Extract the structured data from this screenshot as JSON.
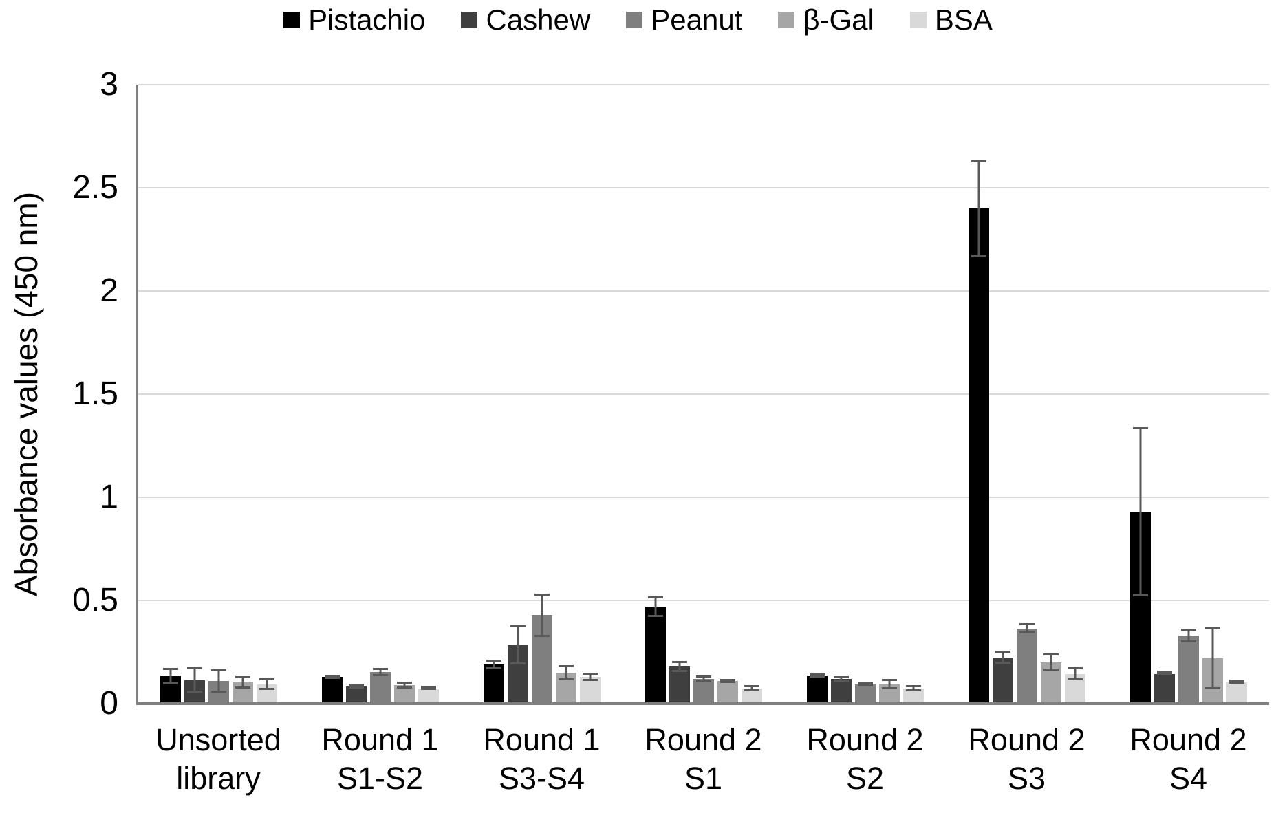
{
  "chart_data": {
    "type": "bar",
    "title": "",
    "ylabel": "Absorbance values (450 nm)",
    "xlabel": "",
    "ylim": [
      0,
      3
    ],
    "yticks": [
      0,
      0.5,
      1,
      1.5,
      2,
      2.5,
      3
    ],
    "grid": true,
    "legend_position": "top",
    "gridline_color": "#d9d9d9",
    "axis_color": "#7f7f7f",
    "error_bar_color": "#595959",
    "categories": [
      {
        "label": "Unsorted library",
        "lines": [
          "Unsorted",
          "library"
        ]
      },
      {
        "label": "Round 1 S1-S2",
        "lines": [
          "Round 1",
          "S1-S2"
        ]
      },
      {
        "label": "Round 1 S3-S4",
        "lines": [
          "Round 1",
          "S3-S4"
        ]
      },
      {
        "label": "Round 2 S1",
        "lines": [
          "Round 2",
          "S1"
        ]
      },
      {
        "label": "Round 2 S2",
        "lines": [
          "Round 2",
          "S2"
        ]
      },
      {
        "label": "Round 2 S3",
        "lines": [
          "Round 2",
          "S3"
        ]
      },
      {
        "label": "Round 2 S4",
        "lines": [
          "Round 2",
          "S4"
        ]
      }
    ],
    "series": [
      {
        "name": "Pistachio",
        "color": "#000000",
        "values": [
          0.135,
          0.13,
          0.19,
          0.47,
          0.135,
          2.4,
          0.93
        ],
        "errors": [
          0.04,
          0.01,
          0.022,
          0.05,
          0.008,
          0.235,
          0.41
        ]
      },
      {
        "name": "Cashew",
        "color": "#3f3f3f",
        "values": [
          0.115,
          0.085,
          0.285,
          0.18,
          0.12,
          0.225,
          0.145
        ],
        "errors": [
          0.063,
          0.01,
          0.095,
          0.026,
          0.012,
          0.032,
          0.006
        ]
      },
      {
        "name": "Peanut",
        "color": "#7f7f7f",
        "values": [
          0.11,
          0.155,
          0.43,
          0.12,
          0.095,
          0.365,
          0.33
        ],
        "errors": [
          0.058,
          0.02,
          0.105,
          0.018,
          0.01,
          0.025,
          0.033
        ]
      },
      {
        "name": "β-Gal",
        "color": "#a6a6a6",
        "values": [
          0.105,
          0.09,
          0.15,
          0.11,
          0.095,
          0.2,
          0.22
        ],
        "errors": [
          0.03,
          0.016,
          0.036,
          0.01,
          0.024,
          0.044,
          0.15
        ]
      },
      {
        "name": "BSA",
        "color": "#d9d9d9",
        "values": [
          0.095,
          0.075,
          0.13,
          0.075,
          0.075,
          0.145,
          0.105
        ],
        "errors": [
          0.028,
          0.008,
          0.02,
          0.015,
          0.014,
          0.032,
          0.008
        ]
      }
    ]
  }
}
